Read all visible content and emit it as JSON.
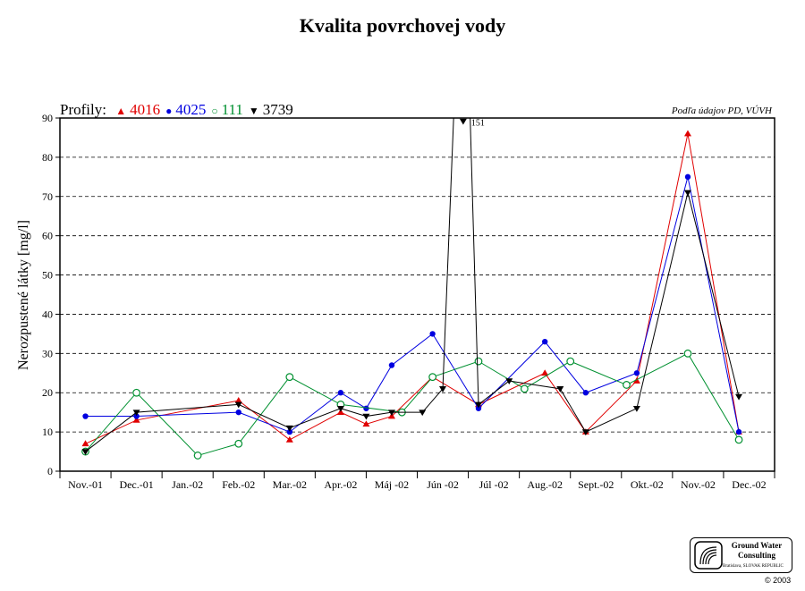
{
  "chart_data": {
    "type": "line",
    "title": "Kvalita povrchovej vody",
    "legend_prefix": "Profily:",
    "source_note": "Podľa údajov PD, VÚVH",
    "ylabel": "Nerozpustené látky  [mg/l]",
    "xlabel": "",
    "ylim": [
      0,
      90
    ],
    "yticks": [
      "0",
      "10",
      "20",
      "30",
      "40",
      "50",
      "60",
      "70",
      "80",
      "90"
    ],
    "grid": true,
    "categories": [
      "Nov.-01",
      "Dec.-01",
      "Jan.-02",
      "Feb.-02",
      "Mar.-02",
      "Apr.-02",
      "Máj -02",
      "Jún -02",
      "Júl -02",
      "Aug.-02",
      "Sept.-02",
      "Okt.-02",
      "Nov.-02",
      "Dec.-02"
    ],
    "series": [
      {
        "name": "4016",
        "color": "#e00000",
        "marker": "triangle-up",
        "points": [
          [
            0.0,
            7
          ],
          [
            1.0,
            13
          ],
          [
            3.0,
            18
          ],
          [
            4.0,
            8
          ],
          [
            5.0,
            15
          ],
          [
            5.5,
            12
          ],
          [
            6.0,
            14
          ],
          [
            6.8,
            24
          ],
          [
            7.7,
            17
          ],
          [
            9.0,
            25
          ],
          [
            9.8,
            10
          ],
          [
            10.8,
            23
          ],
          [
            11.8,
            86
          ],
          [
            12.8,
            10
          ]
        ]
      },
      {
        "name": "4025",
        "color": "#0000e0",
        "marker": "circle",
        "points": [
          [
            0.0,
            14
          ],
          [
            1.0,
            14
          ],
          [
            3.0,
            15
          ],
          [
            4.0,
            10
          ],
          [
            5.0,
            20
          ],
          [
            5.5,
            16
          ],
          [
            6.0,
            27
          ],
          [
            6.8,
            35
          ],
          [
            7.7,
            16
          ],
          [
            9.0,
            33
          ],
          [
            9.8,
            20
          ],
          [
            10.8,
            25
          ],
          [
            11.8,
            75
          ],
          [
            12.8,
            10
          ]
        ]
      },
      {
        "name": "111",
        "color": "#009030",
        "marker": "circle-open",
        "points": [
          [
            0.0,
            5
          ],
          [
            1.0,
            20
          ],
          [
            2.2,
            4
          ],
          [
            3.0,
            7
          ],
          [
            4.0,
            24
          ],
          [
            5.0,
            17
          ],
          [
            6.2,
            15
          ],
          [
            6.8,
            24
          ],
          [
            7.7,
            28
          ],
          [
            8.6,
            21
          ],
          [
            9.5,
            28
          ],
          [
            10.6,
            22
          ],
          [
            11.8,
            30
          ],
          [
            12.8,
            8
          ]
        ]
      },
      {
        "name": "3739",
        "color": "#000000",
        "marker": "triangle-down",
        "points": [
          [
            0.0,
            5
          ],
          [
            1.0,
            15
          ],
          [
            3.0,
            17
          ],
          [
            4.0,
            11
          ],
          [
            5.0,
            16
          ],
          [
            5.5,
            14
          ],
          [
            6.0,
            15
          ],
          [
            6.6,
            15
          ],
          [
            7.0,
            21
          ],
          [
            7.4,
            151
          ],
          [
            7.7,
            17
          ],
          [
            8.3,
            23
          ],
          [
            9.3,
            21
          ],
          [
            9.8,
            10
          ],
          [
            10.8,
            16
          ],
          [
            11.8,
            71
          ],
          [
            12.8,
            19
          ]
        ]
      }
    ],
    "annotations": [
      {
        "text": "151",
        "x": 7.4,
        "y": 89
      }
    ]
  },
  "logo": {
    "line1": "Ground Water",
    "line2": "Consulting",
    "sub": "Bratislava, SLOVAK REPUBLIC"
  },
  "copyright": "© 2003"
}
